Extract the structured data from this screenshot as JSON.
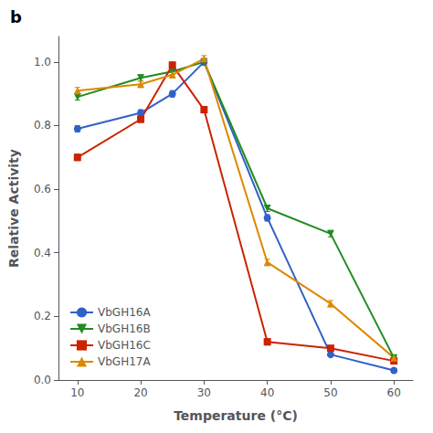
{
  "chart_data": {
    "type": "line",
    "title": "b",
    "x_label": "Temperature (°C)",
    "y_label": "Relative Activity",
    "x": [
      10,
      20,
      25,
      30,
      40,
      50,
      60
    ],
    "series": [
      {
        "name": "VbGH16A",
        "color": "#3060c8",
        "marker": "circle",
        "values": [
          0.79,
          0.84,
          0.9,
          1.0,
          0.51,
          0.08,
          0.03
        ],
        "errors": [
          0.01,
          0.01,
          0.01,
          0.01,
          0.01,
          0.005,
          0.005
        ]
      },
      {
        "name": "VbGH16B",
        "color": "#228B22",
        "marker": "triangle-down",
        "values": [
          0.89,
          0.95,
          0.97,
          1.0,
          0.54,
          0.46,
          0.07
        ],
        "errors": [
          0.01,
          0.01,
          0.01,
          0.01,
          0.01,
          0.01,
          0.005
        ]
      },
      {
        "name": "VbGH16C",
        "color": "#cc2200",
        "marker": "square",
        "values": [
          0.7,
          0.82,
          0.99,
          0.85,
          0.12,
          0.1,
          0.06
        ],
        "errors": [
          0.01,
          0.01,
          0.01,
          0.01,
          0.01,
          0.005,
          0.005
        ]
      },
      {
        "name": "VbGH17A",
        "color": "#dd8800",
        "marker": "triangle-up",
        "values": [
          0.91,
          0.93,
          0.96,
          1.01,
          0.37,
          0.24,
          0.07
        ],
        "errors": [
          0.01,
          0.01,
          0.01,
          0.01,
          0.01,
          0.01,
          0.005
        ]
      }
    ],
    "xlim": [
      7,
      63
    ],
    "xticks": [
      10,
      20,
      30,
      40,
      50,
      60
    ],
    "ylim": [
      0,
      1.08
    ],
    "yticks": [
      {
        "value": 0,
        "label": "0.0"
      },
      0.2,
      0.4,
      0.6,
      0.8,
      {
        "value": 1.0,
        "label": "1.0"
      }
    ],
    "grid": false,
    "legend": "lower left"
  }
}
